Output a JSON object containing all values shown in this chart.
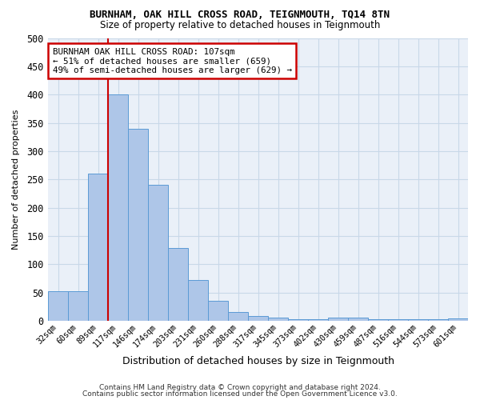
{
  "title": "BURNHAM, OAK HILL CROSS ROAD, TEIGNMOUTH, TQ14 8TN",
  "subtitle": "Size of property relative to detached houses in Teignmouth",
  "xlabel": "Distribution of detached houses by size in Teignmouth",
  "ylabel": "Number of detached properties",
  "footer1": "Contains HM Land Registry data © Crown copyright and database right 2024.",
  "footer2": "Contains public sector information licensed under the Open Government Licence v3.0.",
  "bar_labels": [
    "32sqm",
    "60sqm",
    "89sqm",
    "117sqm",
    "146sqm",
    "174sqm",
    "203sqm",
    "231sqm",
    "260sqm",
    "288sqm",
    "317sqm",
    "345sqm",
    "373sqm",
    "402sqm",
    "430sqm",
    "459sqm",
    "487sqm",
    "516sqm",
    "544sqm",
    "573sqm",
    "601sqm"
  ],
  "bar_values": [
    52,
    52,
    260,
    400,
    340,
    240,
    128,
    72,
    35,
    16,
    8,
    5,
    3,
    3,
    6,
    5,
    3,
    2,
    2,
    2,
    4
  ],
  "bar_color": "#aec6e8",
  "bar_edge_color": "#5b9bd5",
  "grid_color": "#c8d8e8",
  "background_color": "#eaf0f8",
  "red_line_index": 3,
  "annotation_text": "BURNHAM OAK HILL CROSS ROAD: 107sqm\n← 51% of detached houses are smaller (659)\n49% of semi-detached houses are larger (629) →",
  "annotation_box_color": "#ffffff",
  "annotation_box_edge": "#cc0000",
  "red_line_color": "#cc0000",
  "ylim": [
    0,
    500
  ],
  "yticks": [
    0,
    50,
    100,
    150,
    200,
    250,
    300,
    350,
    400,
    450,
    500
  ]
}
